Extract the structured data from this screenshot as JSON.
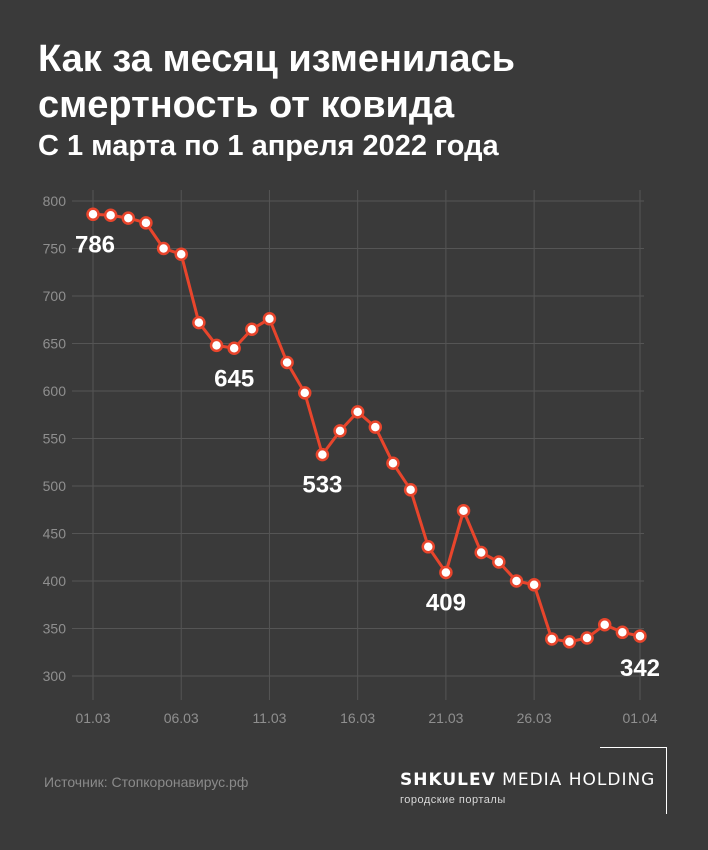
{
  "title": "Как за месяц изменилась смертность от ковида",
  "subtitle": "С 1 марта по 1 апреля 2022 года",
  "source": "Источник: Стопкоронавирус.рф",
  "brand": {
    "name_bold": "SHKULEV",
    "name_rest": "MEDIA HOLDING",
    "tagline": "городские порталы"
  },
  "colors": {
    "background": "#3a3a3a",
    "line": "#e8452c",
    "grid": "#555555",
    "axis_text": "#8f8f8f"
  },
  "chart_data": {
    "type": "line",
    "xlabel": "",
    "ylabel": "",
    "ylim": [
      275,
      810
    ],
    "yticks": [
      300,
      350,
      400,
      450,
      500,
      550,
      600,
      650,
      700,
      750,
      800
    ],
    "xticks": [
      "01.03",
      "06.03",
      "11.03",
      "16.03",
      "21.03",
      "26.03",
      "01.04"
    ],
    "grid": true,
    "x": [
      "01.03",
      "02.03",
      "03.03",
      "04.03",
      "05.03",
      "06.03",
      "07.03",
      "08.03",
      "09.03",
      "10.03",
      "11.03",
      "12.03",
      "13.03",
      "14.03",
      "15.03",
      "16.03",
      "17.03",
      "18.03",
      "19.03",
      "20.03",
      "21.03",
      "22.03",
      "23.03",
      "24.03",
      "25.03",
      "26.03",
      "27.03",
      "28.03",
      "29.03",
      "30.03",
      "31.03",
      "01.04"
    ],
    "series": [
      {
        "values": [
          786,
          785,
          782,
          777,
          750,
          744,
          672,
          648,
          645,
          665,
          676,
          630,
          598,
          533,
          558,
          578,
          562,
          524,
          496,
          436,
          409,
          474,
          430,
          420,
          400,
          396,
          339,
          336,
          340,
          354,
          346,
          342
        ]
      }
    ],
    "annotations": [
      {
        "x": "01.03",
        "value": 786,
        "label": "786"
      },
      {
        "x": "09.03",
        "value": 645,
        "label": "645"
      },
      {
        "x": "14.03",
        "value": 533,
        "label": "533"
      },
      {
        "x": "21.03",
        "value": 409,
        "label": "409"
      },
      {
        "x": "01.04",
        "value": 342,
        "label": "342"
      }
    ]
  }
}
